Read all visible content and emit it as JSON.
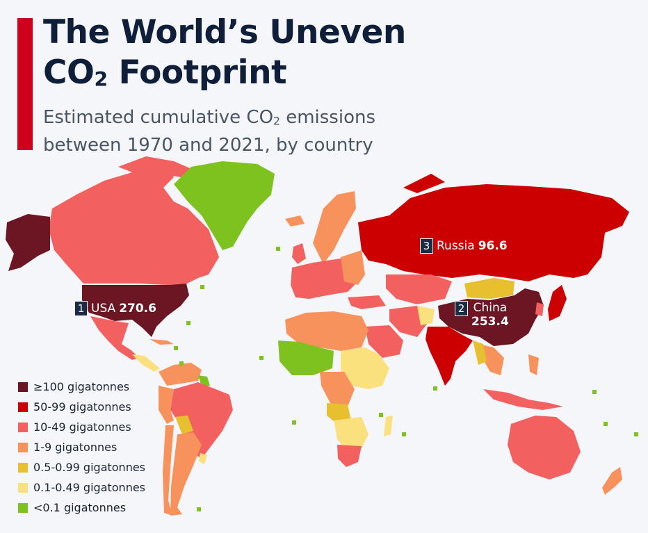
{
  "title": {
    "line1": "The World’s Uneven",
    "line2_prefix": "CO",
    "line2_sub": "2",
    "line2_suffix": " Footprint"
  },
  "subtitle": {
    "line1_prefix": "Estimated cumulative CO",
    "line1_sub": "2",
    "line1_suffix": " emissions",
    "line2": "between 1970 and 2021, by country"
  },
  "colors": {
    "accent": "#d0021b",
    "cat_100_plus": "#6b1622",
    "cat_50_99": "#cc0000",
    "cat_10_49": "#f26160",
    "cat_1_9": "#f8925c",
    "cat_05_099": "#e6c02e",
    "cat_01_049": "#fbe07e",
    "cat_lt_01": "#7dc21e",
    "callout_box": "#1c2b45"
  },
  "legend": [
    {
      "label": "≥100 gigatonnes",
      "color": "#6b1622"
    },
    {
      "label": "50-99 gigatonnes",
      "color": "#cc0000"
    },
    {
      "label": "10-49 gigatonnes",
      "color": "#f26160"
    },
    {
      "label": "1-9 gigatonnes",
      "color": "#f8925c"
    },
    {
      "label": "0.5-0.99 gigatonnes",
      "color": "#e6c02e"
    },
    {
      "label": "0.1-0.49 gigatonnes",
      "color": "#fbe07e"
    },
    {
      "label": "<0.1 gigatonnes",
      "color": "#7dc21e"
    }
  ],
  "callouts": [
    {
      "rank": "1",
      "country": "USA",
      "value": "270.6"
    },
    {
      "rank": "2",
      "country": "China",
      "value": "253.4"
    },
    {
      "rank": "3",
      "country": "Russia",
      "value": "96.6"
    }
  ]
}
